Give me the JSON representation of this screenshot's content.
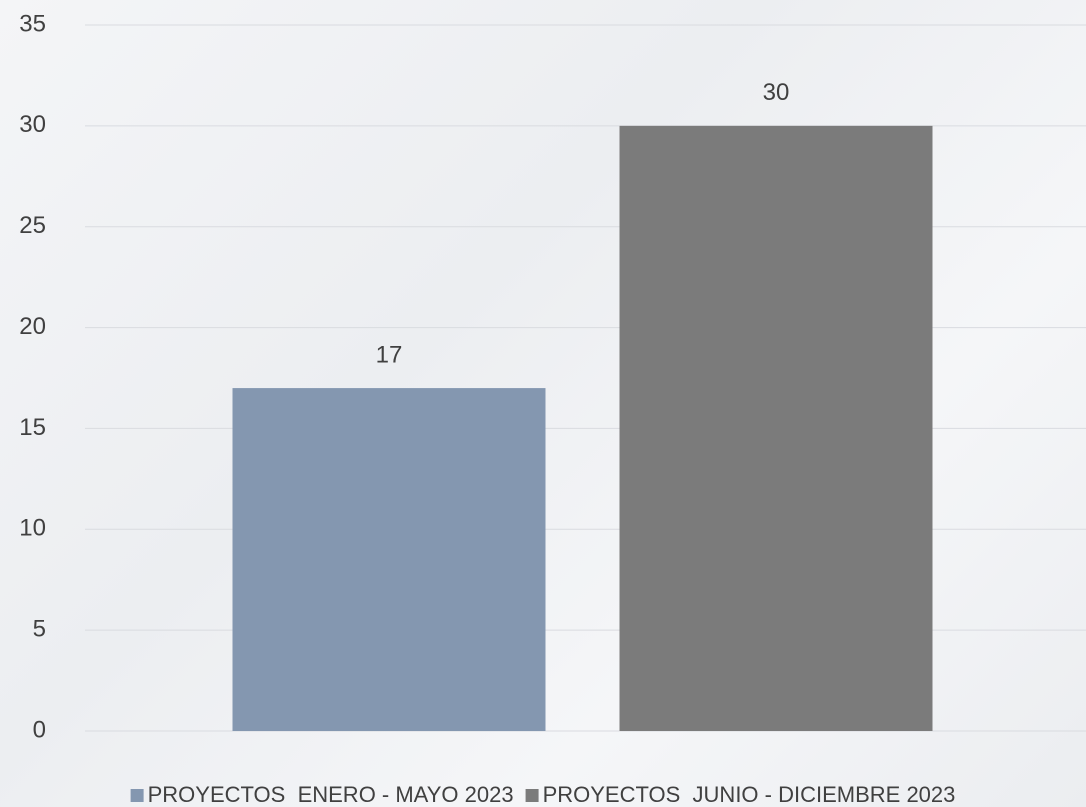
{
  "chart_data": {
    "type": "bar",
    "series": [
      {
        "name": "PROYECTOS  ENERO - MAYO 2023",
        "color": "#8497b0",
        "values": [
          17
        ]
      },
      {
        "name": "PROYECTOS  JUNIO - DICIEMBRE 2023",
        "color": "#7b7b7b",
        "values": [
          30
        ]
      }
    ],
    "ylim": [
      0,
      35
    ],
    "yticks": [
      0,
      5,
      10,
      15,
      20,
      25,
      30,
      35
    ],
    "grid": true,
    "legend": "bottom"
  }
}
